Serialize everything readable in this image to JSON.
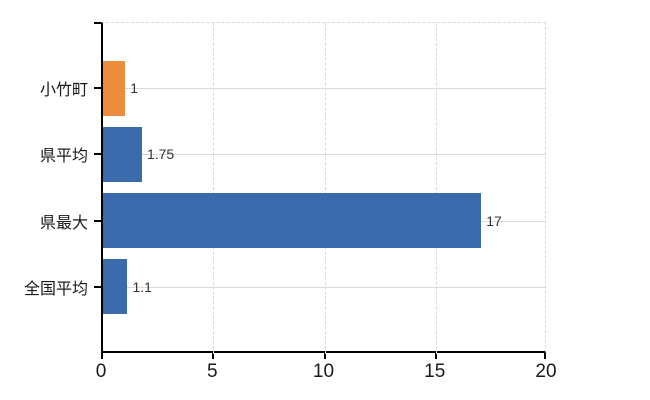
{
  "chart_data": {
    "type": "bar",
    "orientation": "horizontal",
    "categories": [
      "小竹町",
      "県平均",
      "県最大",
      "全国平均"
    ],
    "values": [
      1,
      1.75,
      17,
      1.1
    ],
    "value_labels": [
      "1",
      "1.75",
      "17",
      "1.1"
    ],
    "bar_colors": [
      "#ec8d3d",
      "#3c6bad",
      "#3c6bad",
      "#3c6bad"
    ],
    "xlim": [
      0,
      20
    ],
    "x_ticks": [
      0,
      5,
      10,
      15,
      20
    ],
    "x_tick_labels": [
      "0",
      "5",
      "10",
      "15",
      "20"
    ],
    "grid": true,
    "legend": "none",
    "title": ""
  },
  "colors": {
    "bar_orange": "#ec8d3d",
    "bar_blue": "#3c6bad",
    "h_gridline": "#d5dcd5",
    "v_gridline": "#d8d8d8",
    "axis": "#000000",
    "background": "#ffffff",
    "text": "#1a1a1a",
    "value_text": "#333333"
  }
}
